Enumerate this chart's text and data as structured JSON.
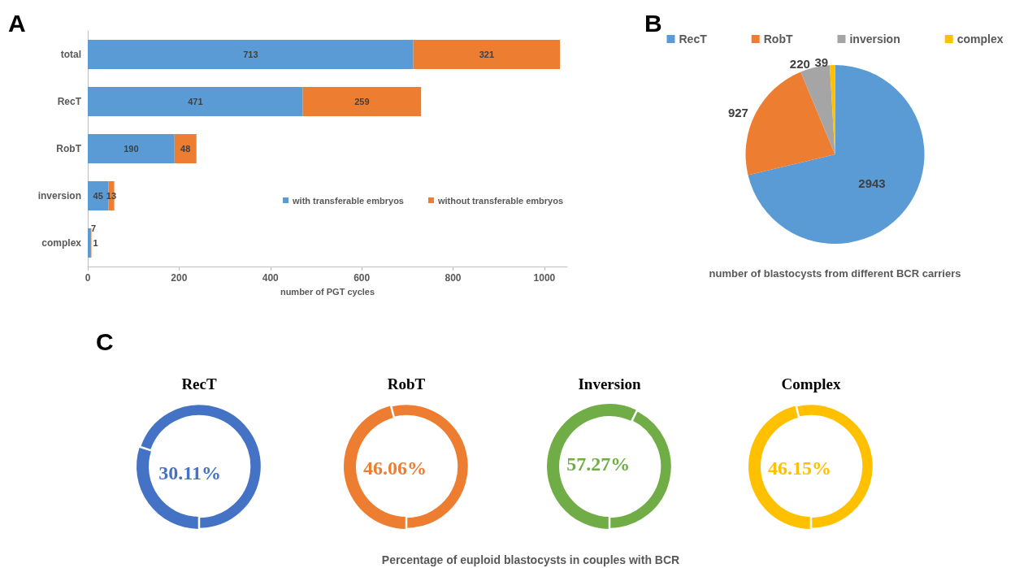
{
  "chart_data": [
    {
      "type": "bar",
      "orientation": "horizontal",
      "stacked": true,
      "xlabel": "number of PGT cycles",
      "categories": [
        "total",
        "RecT",
        "RobT",
        "inversion",
        "complex"
      ],
      "xlim": [
        0,
        1050
      ],
      "xticks": [
        0,
        200,
        400,
        600,
        800,
        1000
      ],
      "grid": false,
      "legend": "right",
      "data_labels": true,
      "annotations": [
        "A"
      ],
      "series": [
        {
          "name": "with transferable embryos",
          "color": "#5b9bd5",
          "values": [
            713,
            471,
            190,
            45,
            7
          ]
        },
        {
          "name": "without transferable embryos",
          "color": "#ed7d31",
          "values": [
            321,
            259,
            48,
            13,
            1
          ]
        }
      ]
    },
    {
      "type": "pie",
      "title": "number of blastocysts from different BCR carriers",
      "categories": [
        "RecT",
        "RobT",
        "inversion",
        "complex"
      ],
      "values": [
        2943,
        927,
        220,
        39
      ],
      "colors": [
        "#5b9bd5",
        "#ed7d31",
        "#a5a5a5",
        "#ffc000"
      ],
      "legend": "top",
      "data_labels": true,
      "annotations": [
        "B"
      ]
    },
    {
      "type": "donut",
      "title": "RecT",
      "categories": [
        null,
        null
      ],
      "values": [
        30.11,
        69.89
      ],
      "value_labels": [
        "30.11%",
        null
      ],
      "colors": [
        "#4472c4",
        "#4472c4"
      ],
      "annotations": [
        "C",
        "Percentage of euploid blastocysts in couples with BCR"
      ]
    },
    {
      "type": "donut",
      "title": "RobT",
      "categories": [
        null,
        null
      ],
      "values": [
        46.06,
        53.94
      ],
      "value_labels": [
        "46.06%",
        null
      ],
      "colors": [
        "#ed7d31",
        "#ed7d31"
      ]
    },
    {
      "type": "donut",
      "title": "Inversion",
      "categories": [
        null,
        null
      ],
      "values": [
        57.27,
        42.73
      ],
      "value_labels": [
        "57.27%",
        null
      ],
      "colors": [
        "#70ad47",
        "#70ad47"
      ]
    },
    {
      "type": "donut",
      "title": "Complex",
      "categories": [
        null,
        null
      ],
      "values": [
        46.15,
        53.85
      ],
      "value_labels": [
        "46.15%",
        null
      ],
      "colors": [
        "#ffc000",
        "#ffc000"
      ]
    }
  ]
}
